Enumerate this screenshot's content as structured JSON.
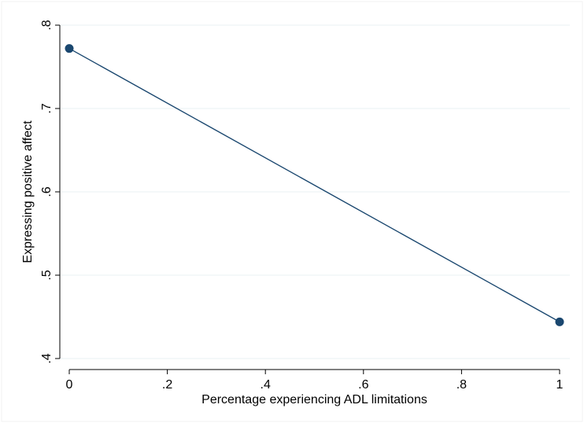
{
  "chart_data": {
    "type": "line",
    "xlabel": "Percentage experiencing ADL limitations",
    "ylabel": "Expressing positive affect",
    "xlim": [
      0,
      1
    ],
    "ylim": [
      0.4,
      0.8
    ],
    "x_ticks": [
      0,
      0.2,
      0.4,
      0.6,
      0.8,
      1
    ],
    "x_tick_labels": [
      "0",
      ".2",
      ".4",
      ".6",
      ".8",
      "1"
    ],
    "y_ticks": [
      0.4,
      0.5,
      0.6,
      0.7,
      0.8
    ],
    "y_tick_labels": [
      ".4",
      ".5",
      ".6",
      ".7",
      ".8"
    ],
    "grid": true,
    "series": [
      {
        "x": [
          0,
          1
        ],
        "y": [
          0.772,
          0.444
        ],
        "color": "#1a476f",
        "marker": "circle"
      }
    ]
  },
  "colors": {
    "line": "#1a476f",
    "marker": "#1a476f",
    "grid": "#eaf2f3",
    "axis": "#000000"
  }
}
